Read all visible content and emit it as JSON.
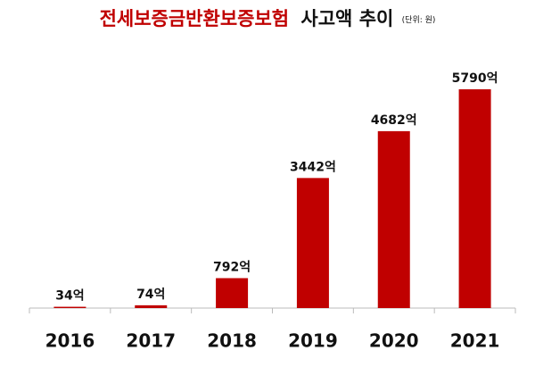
{
  "chart_data": {
    "type": "bar",
    "title": "전세보증금반환보증보험",
    "title_suffix": "사고액 추이",
    "unit": "(단위: 원)",
    "categories": [
      "2016",
      "2017",
      "2018",
      "2019",
      "2020",
      "2021"
    ],
    "values": [
      34,
      74,
      792,
      3442,
      4682,
      5790
    ],
    "value_labels": [
      "34억",
      "74억",
      "792억",
      "3442억",
      "4682억",
      "5790억"
    ],
    "color": "#c00000",
    "title_color": "#c00000"
  }
}
